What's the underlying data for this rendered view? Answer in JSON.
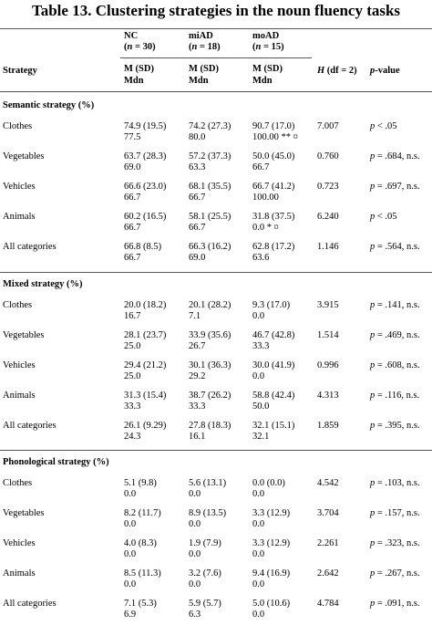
{
  "title": "Table 13. Clustering strategies in the noun fluency tasks",
  "header": {
    "groups": [
      {
        "name": "NC",
        "n_prefix": "(",
        "n_var": "n",
        "n_suffix": " = 30)"
      },
      {
        "name": "miAD",
        "n_prefix": "(",
        "n_var": "n",
        "n_suffix": " = 18)"
      },
      {
        "name": "moAD",
        "n_prefix": "(",
        "n_var": "n",
        "n_suffix": " = 15)"
      }
    ],
    "strategy": "Strategy",
    "stat_line1": "M (SD)",
    "stat_line2": "Mdn",
    "h_var": "H",
    "h_suffix": " (df = 2)",
    "p_var": "p",
    "p_suffix": "-value"
  },
  "sections": [
    {
      "title": "Semantic strategy (%)",
      "rows": [
        {
          "label": "Clothes",
          "nc": [
            "74.9  (19.5)",
            "77.5"
          ],
          "mi": [
            "74.2  (27.3)",
            "80.0"
          ],
          "mo": [
            "90.7  (17.0)",
            "100.00 ** ¤"
          ],
          "h": "7.007",
          "p_var": "p",
          "p_rest": " < .05"
        },
        {
          "label": "Vegetables",
          "nc": [
            "63.7  (28.3)",
            "69.0"
          ],
          "mi": [
            "57.2  (37.3)",
            "63.3"
          ],
          "mo": [
            "50.0  (45.0)",
            "66.7"
          ],
          "h": "0.760",
          "p_var": "p",
          "p_rest": " = .684, n.s."
        },
        {
          "label": "Vehicles",
          "nc": [
            "66.6  (23.0)",
            "66.7"
          ],
          "mi": [
            "68.1  (35.5)",
            "66.7"
          ],
          "mo": [
            "66.7  (41.2)",
            "100.00"
          ],
          "h": "0.723",
          "p_var": "p",
          "p_rest": " = .697, n.s."
        },
        {
          "label": "Animals",
          "nc": [
            "60.2  (16.5)",
            "66.7"
          ],
          "mi": [
            "58.1  (25.5)",
            "66.7"
          ],
          "mo": [
            "31.8  (37.5)",
            "0.0 * ¤"
          ],
          "h": "6.240",
          "p_var": "p",
          "p_rest": " < .05"
        },
        {
          "label": "All categories",
          "nc": [
            "66.8  (8.5)",
            "66.7"
          ],
          "mi": [
            "66.3  (16.2)",
            "69.0"
          ],
          "mo": [
            "62.8  (17.2)",
            "63.6"
          ],
          "h": "1.146",
          "p_var": "p",
          "p_rest": " = .564, n.s."
        }
      ]
    },
    {
      "title": "Mixed strategy (%)",
      "rows": [
        {
          "label": "Clothes",
          "nc": [
            "20.0  (18.2)",
            "16.7"
          ],
          "mi": [
            "20.1  (28.2)",
            "7.1"
          ],
          "mo": [
            "9.3  (17.0)",
            "0.0"
          ],
          "h": "3.915",
          "p_var": "p",
          "p_rest": " = .141, n.s."
        },
        {
          "label": "Vegetables",
          "nc": [
            "28.1  (23.7)",
            "25.0"
          ],
          "mi": [
            "33.9  (35.6)",
            "26.7"
          ],
          "mo": [
            "46.7  (42.8)",
            "33.3"
          ],
          "h": "1.514",
          "p_var": "p",
          "p_rest": " = .469, n.s."
        },
        {
          "label": "Vehicles",
          "nc": [
            "29.4  (21.2)",
            "25.0"
          ],
          "mi": [
            "30.1  (36.3)",
            "29.2"
          ],
          "mo": [
            "30.0  (41.9)",
            "0.0"
          ],
          "h": "0.996",
          "p_var": "p",
          "p_rest": " = .608, n.s."
        },
        {
          "label": "Animals",
          "nc": [
            "31.3  (15.4)",
            "33.3"
          ],
          "mi": [
            "38.7  (26.2)",
            "33.3"
          ],
          "mo": [
            "58.8  (42.4)",
            "50.0"
          ],
          "h": "4.313",
          "p_var": "p",
          "p_rest": " = .116, n.s."
        },
        {
          "label": "All categories",
          "nc": [
            "26.1  (9.29)",
            "24.3"
          ],
          "mi": [
            "27.8  (18.3)",
            "16.1"
          ],
          "mo": [
            "32.1  (15.1)",
            "32.1"
          ],
          "h": "1.859",
          "p_var": "p",
          "p_rest": " = .395, n.s."
        }
      ]
    },
    {
      "title": "Phonological strategy (%)",
      "rows": [
        {
          "label": "Clothes",
          "nc": [
            "5.1  (9.8)",
            "0.0"
          ],
          "mi": [
            "5.6  (13.1)",
            "0.0"
          ],
          "mo": [
            "0.0  (0.0)",
            "0.0"
          ],
          "h": "4.542",
          "p_var": "p",
          "p_rest": " = .103, n.s."
        },
        {
          "label": "Vegetables",
          "nc": [
            "8.2  (11.7)",
            "0.0"
          ],
          "mi": [
            "8.9  (13.5)",
            "0.0"
          ],
          "mo": [
            "3.3  (12.9)",
            "0.0"
          ],
          "h": "3.704",
          "p_var": "p",
          "p_rest": " = .157, n.s."
        },
        {
          "label": "Vehicles",
          "nc": [
            "4.0  (8.3)",
            "0.0"
          ],
          "mi": [
            "1.9  (7.9)",
            "0.0"
          ],
          "mo": [
            "3.3  (12.9)",
            "0.0"
          ],
          "h": "2.261",
          "p_var": "p",
          "p_rest": " = .323, n.s."
        },
        {
          "label": "Animals",
          "nc": [
            "8.5  (11.3)",
            "0.0"
          ],
          "mi": [
            "3.2  (7.6)",
            "0.0"
          ],
          "mo": [
            "9.4  (16.9)",
            "0.0"
          ],
          "h": "2.642",
          "p_var": "p",
          "p_rest": " = .267, n.s."
        },
        {
          "label": "All categories",
          "nc": [
            "7.1  (5.3)",
            "6.9"
          ],
          "mi": [
            "5.9  (5.7)",
            "6.3"
          ],
          "mo": [
            "5.0  (10.6)",
            "0.0"
          ],
          "h": "4.784",
          "p_var": "p",
          "p_rest": " = .091, n.s."
        }
      ]
    }
  ]
}
